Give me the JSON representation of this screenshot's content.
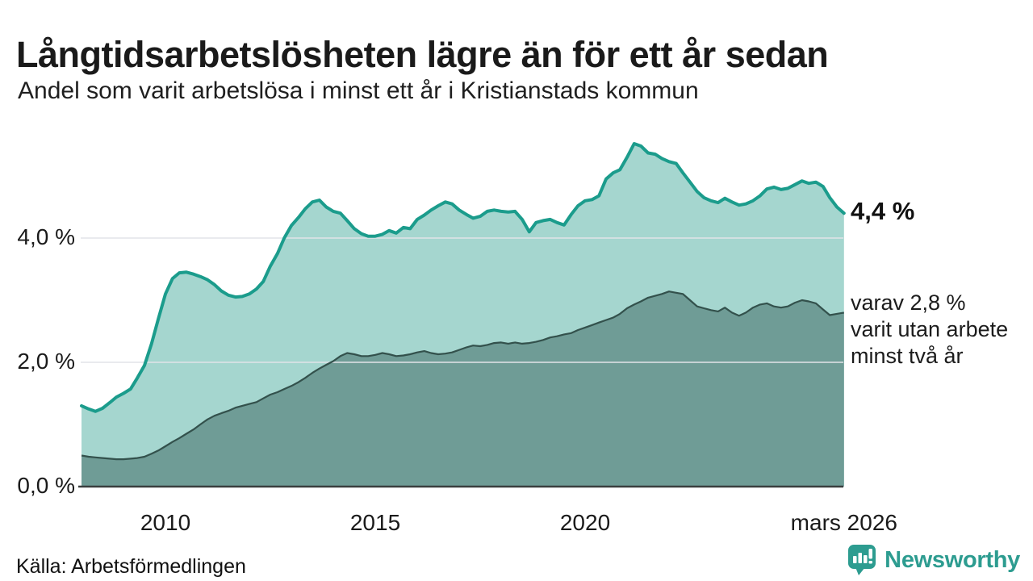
{
  "header": {
    "title": "Långtidsarbetslösheten lägre än för ett år sedan",
    "subtitle": "Andel som varit arbetslösa i minst ett år i Kristianstads kommun"
  },
  "annotations": {
    "latest_total": "4,4 %",
    "latest_total_value": 4.4,
    "latest_two_year": "varav 2,8 %\nvarit utan arbete\nminst två år",
    "latest_two_year_value": 2.8
  },
  "footer": {
    "source": "Källa: Arbetsförmedlingen",
    "brand": "Newsworthy"
  },
  "colors": {
    "series1_line": "#1b9c8c",
    "series1_fill": "#a5d6cf",
    "series2_line": "#33514c",
    "series2_fill": "#6f9c96",
    "gridline": "#e2e3e9",
    "axis_line": "#3a3f3e",
    "brand": "#2d9c90",
    "text": "#1a1a1a"
  },
  "chart_data": {
    "type": "area",
    "title": "Långtidsarbetslösheten lägre än för ett år sedan",
    "subtitle": "Andel som varit arbetslösa i minst ett år i Kristianstads kommun",
    "x_unit": "decimal year, monthly-ish samples, Jan 2008 - mars 2026",
    "ylabel": "",
    "xlabel": "",
    "ylim": [
      0,
      5.64
    ],
    "xlim": [
      2008,
      2026.25
    ],
    "grid": "horizontal gridlines at 2,0 % and 4,0 %; dark baseline at 0,0 %",
    "legend_position": "none (direct line labels at right)",
    "y_ticks": [
      {
        "label": "4,0 %",
        "value": 4.0
      },
      {
        "label": "2,0 %",
        "value": 2.0
      },
      {
        "label": "0,0 %",
        "value": 0.0
      }
    ],
    "gridline_values": [
      4.0,
      2.0
    ],
    "x_ticks": [
      {
        "label": "2010",
        "x": 2010
      },
      {
        "label": "2015",
        "x": 2015
      },
      {
        "label": "2020",
        "x": 2020
      },
      {
        "label": "mars 2026",
        "x": 2026.17
      }
    ],
    "x": [
      2008.0,
      2008.17,
      2008.33,
      2008.5,
      2008.67,
      2008.83,
      2009.0,
      2009.17,
      2009.33,
      2009.5,
      2009.67,
      2009.83,
      2010.0,
      2010.17,
      2010.33,
      2010.5,
      2010.67,
      2010.83,
      2011.0,
      2011.17,
      2011.33,
      2011.5,
      2011.67,
      2011.83,
      2012.0,
      2012.17,
      2012.33,
      2012.5,
      2012.67,
      2012.83,
      2013.0,
      2013.17,
      2013.33,
      2013.5,
      2013.67,
      2013.83,
      2014.0,
      2014.17,
      2014.33,
      2014.5,
      2014.67,
      2014.83,
      2015.0,
      2015.17,
      2015.33,
      2015.5,
      2015.67,
      2015.83,
      2016.0,
      2016.17,
      2016.33,
      2016.5,
      2016.67,
      2016.83,
      2017.0,
      2017.17,
      2017.33,
      2017.5,
      2017.67,
      2017.83,
      2018.0,
      2018.17,
      2018.33,
      2018.5,
      2018.67,
      2018.83,
      2019.0,
      2019.17,
      2019.33,
      2019.5,
      2019.67,
      2019.83,
      2020.0,
      2020.17,
      2020.33,
      2020.5,
      2020.67,
      2020.83,
      2021.0,
      2021.17,
      2021.33,
      2021.5,
      2021.67,
      2021.83,
      2022.0,
      2022.17,
      2022.33,
      2022.5,
      2022.67,
      2022.83,
      2023.0,
      2023.17,
      2023.33,
      2023.5,
      2023.67,
      2023.83,
      2024.0,
      2024.17,
      2024.33,
      2024.5,
      2024.67,
      2024.83,
      2025.0,
      2025.17,
      2025.33,
      2025.5,
      2025.67,
      2025.83,
      2026.0,
      2026.17
    ],
    "series": [
      {
        "name": "Andel arbetslösa minst ett år",
        "end_label": "4,4 %",
        "values": [
          1.3,
          1.25,
          1.21,
          1.26,
          1.35,
          1.44,
          1.5,
          1.57,
          1.75,
          1.95,
          2.3,
          2.7,
          3.1,
          3.35,
          3.44,
          3.45,
          3.42,
          3.38,
          3.33,
          3.25,
          3.15,
          3.08,
          3.05,
          3.06,
          3.1,
          3.18,
          3.3,
          3.55,
          3.75,
          4.0,
          4.2,
          4.33,
          4.47,
          4.58,
          4.61,
          4.5,
          4.43,
          4.4,
          4.28,
          4.15,
          4.07,
          4.03,
          4.03,
          4.06,
          4.12,
          4.08,
          4.17,
          4.15,
          4.3,
          4.37,
          4.45,
          4.52,
          4.58,
          4.55,
          4.45,
          4.38,
          4.32,
          4.35,
          4.43,
          4.45,
          4.43,
          4.42,
          4.43,
          4.3,
          4.1,
          4.25,
          4.28,
          4.3,
          4.25,
          4.21,
          4.38,
          4.52,
          4.6,
          4.62,
          4.68,
          4.95,
          5.05,
          5.1,
          5.3,
          5.52,
          5.48,
          5.37,
          5.35,
          5.28,
          5.23,
          5.2,
          5.05,
          4.9,
          4.75,
          4.65,
          4.6,
          4.57,
          4.64,
          4.58,
          4.53,
          4.55,
          4.6,
          4.68,
          4.79,
          4.82,
          4.78,
          4.8,
          4.86,
          4.92,
          4.88,
          4.9,
          4.83,
          4.65,
          4.5,
          4.4
        ]
      },
      {
        "name": "varav utan arbete minst två år",
        "end_label": "varav 2,8 % varit utan arbete minst två år",
        "values": [
          0.5,
          0.48,
          0.47,
          0.46,
          0.45,
          0.44,
          0.44,
          0.45,
          0.46,
          0.48,
          0.53,
          0.58,
          0.65,
          0.72,
          0.78,
          0.85,
          0.92,
          1.0,
          1.08,
          1.14,
          1.18,
          1.22,
          1.27,
          1.3,
          1.33,
          1.36,
          1.42,
          1.48,
          1.52,
          1.57,
          1.62,
          1.68,
          1.75,
          1.83,
          1.9,
          1.96,
          2.02,
          2.1,
          2.15,
          2.13,
          2.1,
          2.1,
          2.12,
          2.15,
          2.13,
          2.1,
          2.11,
          2.13,
          2.16,
          2.18,
          2.15,
          2.13,
          2.14,
          2.16,
          2.2,
          2.24,
          2.27,
          2.26,
          2.28,
          2.31,
          2.32,
          2.3,
          2.32,
          2.3,
          2.31,
          2.33,
          2.36,
          2.4,
          2.42,
          2.45,
          2.47,
          2.52,
          2.56,
          2.6,
          2.64,
          2.68,
          2.72,
          2.78,
          2.87,
          2.93,
          2.98,
          3.04,
          3.07,
          3.1,
          3.14,
          3.12,
          3.1,
          3.0,
          2.9,
          2.87,
          2.84,
          2.82,
          2.88,
          2.8,
          2.75,
          2.8,
          2.88,
          2.93,
          2.95,
          2.9,
          2.88,
          2.9,
          2.96,
          3.0,
          2.98,
          2.95,
          2.85,
          2.76,
          2.78,
          2.8
        ]
      }
    ]
  }
}
